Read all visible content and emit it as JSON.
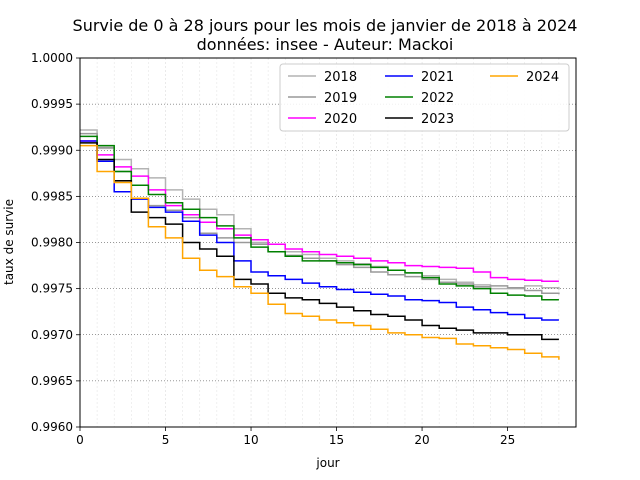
{
  "chart_data": {
    "type": "line",
    "step": true,
    "title": "Survie de 0 à 28 jours pour les mois de janvier de 2018 à 2024",
    "subtitle": "données: insee - Auteur: Mackoi",
    "xlabel": "jour",
    "ylabel": "taux de survie",
    "xlim": [
      0,
      29
    ],
    "ylim": [
      0.996,
      1.0
    ],
    "xticks": [
      0,
      5,
      10,
      15,
      20,
      25
    ],
    "yticks": [
      0.996,
      0.9965,
      0.997,
      0.9975,
      0.998,
      0.9985,
      0.999,
      0.9995,
      1.0
    ],
    "ytick_labels": [
      "0.9960",
      "0.9965",
      "0.9970",
      "0.9975",
      "0.9980",
      "0.9985",
      "0.9990",
      "0.9995",
      "1.0000"
    ],
    "grid": {
      "y_major": true,
      "x_minor": true
    },
    "legend": {
      "placement": "top-right",
      "columns": 3
    },
    "x": [
      0,
      1,
      2,
      3,
      4,
      5,
      6,
      7,
      8,
      9,
      10,
      11,
      12,
      13,
      14,
      15,
      16,
      17,
      18,
      19,
      20,
      21,
      22,
      23,
      24,
      25,
      26,
      27,
      28
    ],
    "series": [
      {
        "name": "2018",
        "color": "#b3b3b3",
        "values": [
          0.99922,
          0.99902,
          0.9989,
          0.9988,
          0.9987,
          0.99857,
          0.99847,
          0.99836,
          0.9983,
          0.99815,
          0.998,
          0.99798,
          0.9979,
          0.99787,
          0.99783,
          0.9978,
          0.99777,
          0.99774,
          0.9977,
          0.99767,
          0.99764,
          0.9976,
          0.99757,
          0.99754,
          0.9975,
          0.9975,
          0.99753,
          0.99751,
          0.99749
        ]
      },
      {
        "name": "2019",
        "color": "#999999",
        "values": [
          0.99918,
          0.99903,
          0.99877,
          0.99848,
          0.9984,
          0.99835,
          0.99827,
          0.9981,
          0.99805,
          0.998,
          0.99798,
          0.9979,
          0.99786,
          0.99783,
          0.9978,
          0.99776,
          0.99773,
          0.99768,
          0.99765,
          0.99763,
          0.9976,
          0.99757,
          0.99755,
          0.99752,
          0.99753,
          0.99751,
          0.99748,
          0.99745,
          0.99744
        ]
      },
      {
        "name": "2020",
        "color": "#ff00ff",
        "values": [
          0.9991,
          0.99895,
          0.99882,
          0.99872,
          0.99857,
          0.9984,
          0.9983,
          0.99822,
          0.99815,
          0.99808,
          0.99803,
          0.99798,
          0.99793,
          0.9979,
          0.99787,
          0.99785,
          0.99783,
          0.9978,
          0.99778,
          0.99775,
          0.99774,
          0.99773,
          0.99772,
          0.99768,
          0.99762,
          0.9976,
          0.99759,
          0.99758,
          0.99758
        ]
      },
      {
        "name": "2021",
        "color": "#0000ff",
        "values": [
          0.9991,
          0.99888,
          0.99855,
          0.99847,
          0.99838,
          0.99833,
          0.99823,
          0.99808,
          0.998,
          0.9978,
          0.99768,
          0.99764,
          0.9976,
          0.99756,
          0.99752,
          0.99749,
          0.99746,
          0.99744,
          0.99742,
          0.99738,
          0.99737,
          0.99735,
          0.9973,
          0.99727,
          0.99724,
          0.99722,
          0.99718,
          0.99716,
          0.99716
        ]
      },
      {
        "name": "2022",
        "color": "#008000",
        "values": [
          0.99915,
          0.99905,
          0.99877,
          0.99862,
          0.99852,
          0.99843,
          0.99836,
          0.99827,
          0.99818,
          0.99805,
          0.99795,
          0.9979,
          0.99785,
          0.9978,
          0.9978,
          0.99778,
          0.99776,
          0.99773,
          0.9977,
          0.99767,
          0.99762,
          0.99755,
          0.99753,
          0.9975,
          0.99745,
          0.99743,
          0.99742,
          0.99738,
          0.99738
        ]
      },
      {
        "name": "2023",
        "color": "#000000",
        "values": [
          0.99908,
          0.9989,
          0.99867,
          0.99833,
          0.99827,
          0.9982,
          0.998,
          0.99793,
          0.99785,
          0.9976,
          0.99755,
          0.99745,
          0.9974,
          0.99738,
          0.99734,
          0.9973,
          0.99726,
          0.99722,
          0.9972,
          0.99716,
          0.9971,
          0.99707,
          0.99705,
          0.99702,
          0.99702,
          0.997,
          0.997,
          0.99695,
          0.99695
        ]
      },
      {
        "name": "2024",
        "color": "#ffa500",
        "values": [
          0.99905,
          0.99877,
          0.99865,
          0.99848,
          0.99817,
          0.99805,
          0.99783,
          0.9977,
          0.99763,
          0.99752,
          0.99745,
          0.99733,
          0.99723,
          0.9972,
          0.99716,
          0.99713,
          0.9971,
          0.99706,
          0.99702,
          0.997,
          0.99697,
          0.99696,
          0.9969,
          0.99688,
          0.99686,
          0.99684,
          0.9968,
          0.99676,
          0.99673
        ]
      }
    ]
  }
}
